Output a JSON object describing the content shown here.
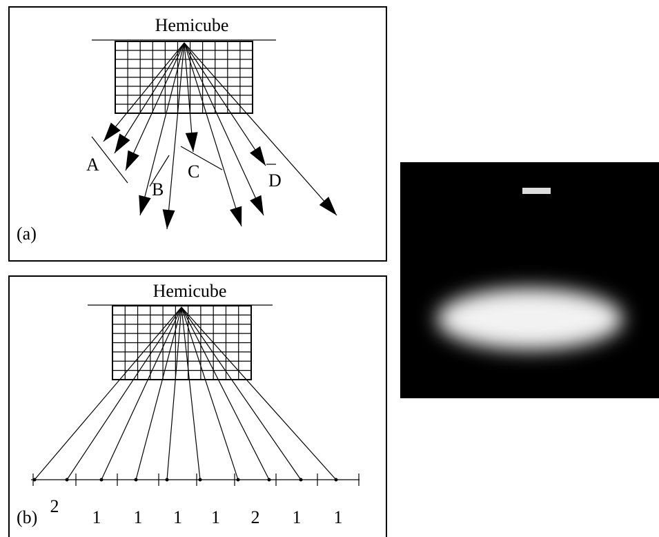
{
  "panel_a": {
    "title": "Hemicube",
    "labels": [
      "A",
      "B",
      "C",
      "D"
    ],
    "caption": "(a)"
  },
  "panel_b": {
    "title": "Hemicube",
    "counts": [
      "2",
      "1",
      "1",
      "1",
      "1",
      "2",
      "1",
      "1"
    ],
    "caption": "(b)"
  }
}
